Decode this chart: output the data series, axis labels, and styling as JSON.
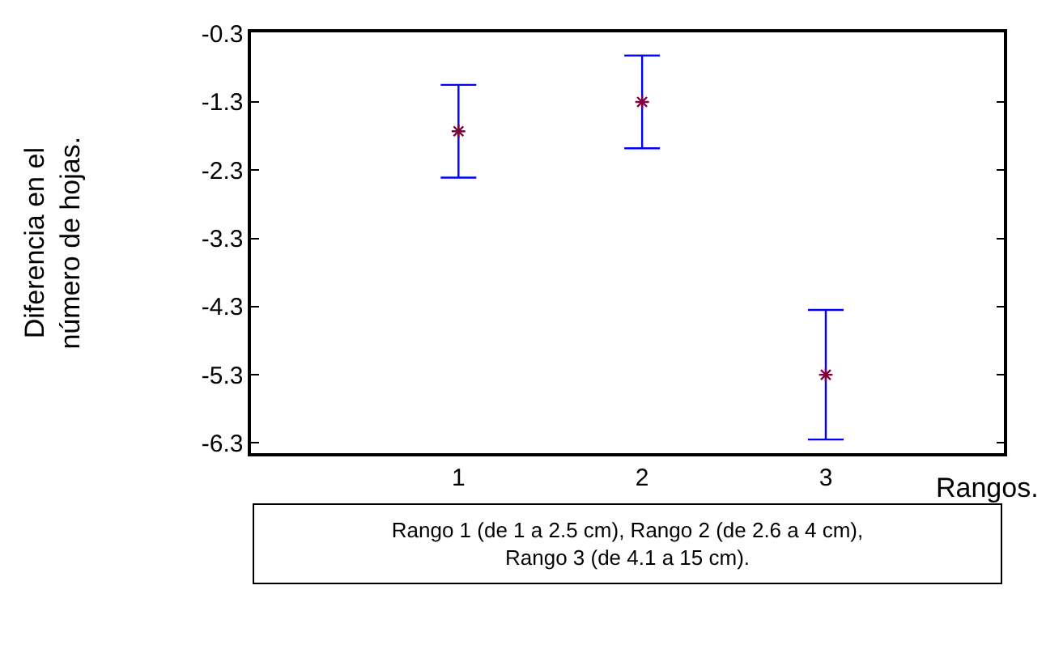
{
  "chart_data": {
    "type": "scatter",
    "xlabel": "Rangos.",
    "ylabel": "Diferencia en el número de hojas.",
    "x": [
      1,
      2,
      3
    ],
    "series": [
      {
        "color": "#800040",
        "values": [
          -1.73,
          -1.3,
          -5.3
        ],
        "errors": [
          0.68,
          0.68,
          0.95
        ]
      }
    ],
    "xlim": [
      -0.13,
      3.97
    ],
    "xticks": [
      1,
      2,
      3
    ],
    "ylim": [
      -6.45,
      -0.28
    ],
    "yticks": [
      -0.3,
      -1.3,
      -2.3,
      -3.3,
      -4.3,
      -5.3,
      -6.3
    ],
    "grid": false,
    "marker": "cross",
    "annotations": [
      "Rango 1 (de 1 a 2.5 cm), Rango 2 (de 2.6 a 4 cm), Rango 3 (de 4.1 a 15 cm)."
    ]
  }
}
